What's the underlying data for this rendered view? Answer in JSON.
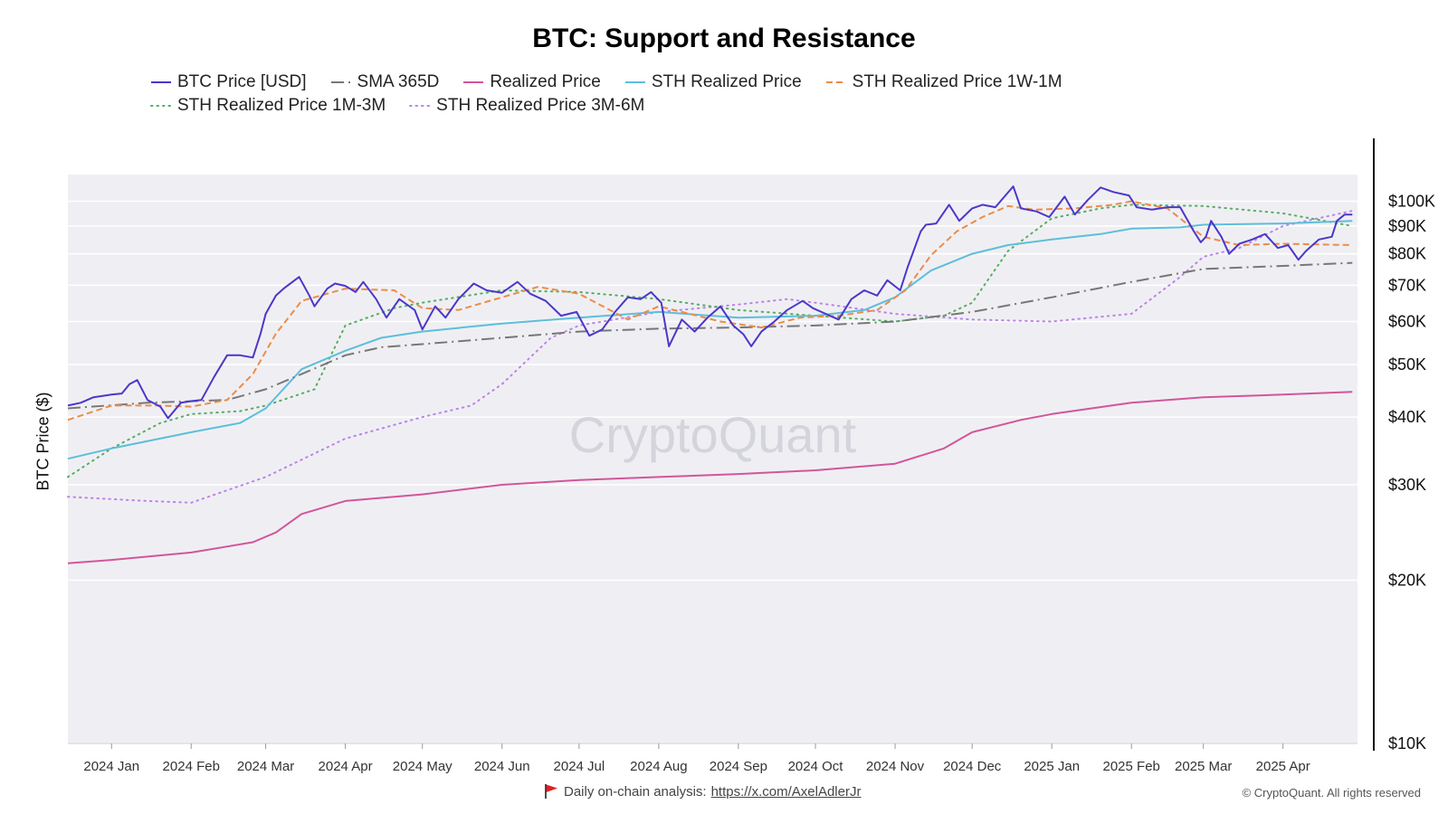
{
  "chart_data": {
    "type": "line",
    "title": "BTC: Support and Resistance",
    "ylabel": "BTC Price ($)",
    "yscale": "log",
    "ylim": [
      10000,
      112000
    ],
    "y_ticks": [
      10000,
      20000,
      30000,
      40000,
      50000,
      60000,
      70000,
      80000,
      90000,
      100000
    ],
    "y_tick_labels": [
      "$10K",
      "$20K",
      "$30K",
      "$40K",
      "$50K",
      "$60K",
      "$70K",
      "$80K",
      "$90K",
      "$100K"
    ],
    "x_range": [
      "2023-12-15",
      "2025-04-30"
    ],
    "x_ticks": [
      "2024-01-01",
      "2024-02-01",
      "2024-03-01",
      "2024-04-01",
      "2024-05-01",
      "2024-06-01",
      "2024-07-01",
      "2024-08-01",
      "2024-09-01",
      "2024-10-01",
      "2024-11-01",
      "2024-12-01",
      "2025-01-01",
      "2025-02-01",
      "2025-03-01",
      "2025-04-01"
    ],
    "x_tick_labels": [
      "2024 Jan",
      "2024 Feb",
      "2024 Mar",
      "2024 Apr",
      "2024 May",
      "2024 Jun",
      "2024 Jul",
      "2024 Aug",
      "2024 Sep",
      "2024 Oct",
      "2024 Nov",
      "2024 Dec",
      "2025 Jan",
      "2025 Feb",
      "2025 Mar",
      "2025 Apr"
    ],
    "grid": true,
    "legend_position": "top",
    "watermark": "CryptoQuant",
    "series": [
      {
        "name": "BTC Price [USD]",
        "color": "#4b37c9",
        "style": "solid",
        "width": 2,
        "x": [
          "2023-12-15",
          "2023-12-20",
          "2023-12-25",
          "2024-01-01",
          "2024-01-05",
          "2024-01-08",
          "2024-01-11",
          "2024-01-15",
          "2024-01-20",
          "2024-01-23",
          "2024-01-28",
          "2024-02-01",
          "2024-02-05",
          "2024-02-10",
          "2024-02-15",
          "2024-02-20",
          "2024-02-25",
          "2024-02-28",
          "2024-03-01",
          "2024-03-05",
          "2024-03-08",
          "2024-03-14",
          "2024-03-18",
          "2024-03-20",
          "2024-03-25",
          "2024-03-28",
          "2024-04-01",
          "2024-04-05",
          "2024-04-08",
          "2024-04-13",
          "2024-04-17",
          "2024-04-22",
          "2024-04-28",
          "2024-05-01",
          "2024-05-06",
          "2024-05-10",
          "2024-05-15",
          "2024-05-21",
          "2024-05-26",
          "2024-06-01",
          "2024-06-07",
          "2024-06-12",
          "2024-06-18",
          "2024-06-24",
          "2024-06-30",
          "2024-07-05",
          "2024-07-10",
          "2024-07-15",
          "2024-07-20",
          "2024-07-25",
          "2024-07-29",
          "2024-08-02",
          "2024-08-05",
          "2024-08-10",
          "2024-08-15",
          "2024-08-20",
          "2024-08-25",
          "2024-08-30",
          "2024-09-03",
          "2024-09-06",
          "2024-09-10",
          "2024-09-15",
          "2024-09-20",
          "2024-09-26",
          "2024-09-30",
          "2024-10-05",
          "2024-10-10",
          "2024-10-15",
          "2024-10-20",
          "2024-10-25",
          "2024-10-29",
          "2024-11-03",
          "2024-11-06",
          "2024-11-11",
          "2024-11-13",
          "2024-11-17",
          "2024-11-22",
          "2024-11-26",
          "2024-12-01",
          "2024-12-05",
          "2024-12-10",
          "2024-12-17",
          "2024-12-20",
          "2024-12-26",
          "2024-12-31",
          "2025-01-06",
          "2025-01-10",
          "2025-01-15",
          "2025-01-20",
          "2025-01-25",
          "2025-01-31",
          "2025-02-03",
          "2025-02-09",
          "2025-02-15",
          "2025-02-20",
          "2025-02-25",
          "2025-02-28",
          "2025-03-02",
          "2025-03-04",
          "2025-03-08",
          "2025-03-11",
          "2025-03-15",
          "2025-03-20",
          "2025-03-25",
          "2025-03-30",
          "2025-04-03",
          "2025-04-07",
          "2025-04-10",
          "2025-04-15",
          "2025-04-20",
          "2025-04-22",
          "2025-04-25",
          "2025-04-28"
        ],
        "values": [
          42000,
          42500,
          43500,
          44000,
          44200,
          46000,
          46800,
          43000,
          41800,
          39800,
          42500,
          42800,
          43000,
          47500,
          52000,
          52000,
          51500,
          57000,
          62000,
          67000,
          69000,
          72500,
          67000,
          64000,
          69000,
          70500,
          69800,
          68000,
          71000,
          66000,
          61000,
          66000,
          63000,
          58000,
          64000,
          61000,
          66000,
          70500,
          68500,
          67800,
          71000,
          67500,
          65500,
          61500,
          62500,
          56500,
          58000,
          62500,
          66500,
          66000,
          68000,
          65000,
          54000,
          60500,
          57500,
          61000,
          64000,
          59000,
          56800,
          54000,
          57500,
          60000,
          63000,
          65500,
          63500,
          62000,
          60500,
          66000,
          68500,
          67000,
          71500,
          68500,
          75800,
          88000,
          90500,
          91000,
          98500,
          92000,
          97000,
          98500,
          97500,
          106500,
          97000,
          95800,
          93500,
          102000,
          94500,
          100500,
          106000,
          104000,
          102500,
          97500,
          96500,
          97500,
          97500,
          88500,
          84000,
          86000,
          92000,
          86000,
          80000,
          83500,
          85000,
          87000,
          82000,
          83000,
          78000,
          81000,
          85000,
          86000,
          92000,
          94500,
          94500
        ]
      },
      {
        "name": "SMA 365D",
        "color": "#777777",
        "style": "dashdot",
        "width": 2,
        "x": [
          "2023-12-15",
          "2024-01-15",
          "2024-02-15",
          "2024-03-01",
          "2024-03-15",
          "2024-04-01",
          "2024-04-15",
          "2024-05-01",
          "2024-06-01",
          "2024-07-01",
          "2024-08-01",
          "2024-09-01",
          "2024-10-01",
          "2024-11-01",
          "2024-12-01",
          "2025-01-01",
          "2025-02-01",
          "2025-03-01",
          "2025-04-01",
          "2025-04-28"
        ],
        "values": [
          41500,
          42500,
          43000,
          45000,
          48000,
          52000,
          53800,
          54500,
          56000,
          57500,
          58200,
          58500,
          59000,
          60000,
          62500,
          66500,
          71000,
          75000,
          76000,
          77000
        ]
      },
      {
        "name": "Realized Price",
        "color": "#d3559a",
        "style": "solid",
        "width": 2,
        "x": [
          "2023-12-15",
          "2024-01-01",
          "2024-02-01",
          "2024-02-25",
          "2024-03-05",
          "2024-03-15",
          "2024-04-01",
          "2024-05-01",
          "2024-06-01",
          "2024-07-01",
          "2024-08-01",
          "2024-09-01",
          "2024-10-01",
          "2024-11-01",
          "2024-11-20",
          "2024-12-01",
          "2024-12-20",
          "2025-01-01",
          "2025-02-01",
          "2025-03-01",
          "2025-04-01",
          "2025-04-28"
        ],
        "values": [
          21500,
          21800,
          22500,
          23500,
          24500,
          26500,
          28000,
          28800,
          30000,
          30600,
          31000,
          31400,
          31900,
          32800,
          35000,
          37500,
          39500,
          40500,
          42500,
          43500,
          44000,
          44500
        ]
      },
      {
        "name": "STH Realized Price",
        "color": "#5dbedb",
        "style": "solid",
        "width": 2,
        "x": [
          "2023-12-15",
          "2024-01-01",
          "2024-02-01",
          "2024-02-20",
          "2024-03-01",
          "2024-03-15",
          "2024-04-01",
          "2024-04-15",
          "2024-05-01",
          "2024-06-01",
          "2024-07-01",
          "2024-08-01",
          "2024-09-01",
          "2024-10-01",
          "2024-10-20",
          "2024-11-01",
          "2024-11-15",
          "2024-12-01",
          "2024-12-15",
          "2025-01-01",
          "2025-01-20",
          "2025-02-01",
          "2025-02-20",
          "2025-03-01",
          "2025-04-01",
          "2025-04-28"
        ],
        "values": [
          33500,
          35000,
          37500,
          39000,
          41500,
          49000,
          53000,
          56000,
          57500,
          59500,
          61000,
          62500,
          61000,
          61500,
          63000,
          66500,
          74500,
          80000,
          83000,
          85000,
          87000,
          89000,
          89500,
          90500,
          91000,
          92000
        ]
      },
      {
        "name": "STH Realized Price 1W-1M",
        "color": "#ec8c48",
        "style": "dashed",
        "width": 2,
        "x": [
          "2023-12-15",
          "2024-01-01",
          "2024-01-20",
          "2024-02-01",
          "2024-02-15",
          "2024-02-25",
          "2024-03-05",
          "2024-03-15",
          "2024-04-01",
          "2024-04-20",
          "2024-05-01",
          "2024-05-15",
          "2024-06-01",
          "2024-06-15",
          "2024-07-01",
          "2024-07-20",
          "2024-08-01",
          "2024-08-10",
          "2024-08-25",
          "2024-09-10",
          "2024-09-25",
          "2024-10-10",
          "2024-10-25",
          "2024-11-05",
          "2024-11-15",
          "2024-11-25",
          "2024-12-05",
          "2024-12-15",
          "2024-12-25",
          "2025-01-10",
          "2025-01-25",
          "2025-02-01",
          "2025-02-15",
          "2025-03-01",
          "2025-03-15",
          "2025-04-01",
          "2025-04-28"
        ],
        "values": [
          39500,
          42000,
          42000,
          41800,
          43000,
          48000,
          57000,
          65500,
          69000,
          68500,
          63500,
          63000,
          66500,
          69500,
          67500,
          60500,
          64000,
          62500,
          60000,
          58500,
          61000,
          61500,
          63000,
          68500,
          79500,
          88000,
          93500,
          98000,
          96500,
          97000,
          98500,
          100000,
          97000,
          86000,
          83000,
          83500,
          83000
        ]
      },
      {
        "name": "STH Realized Price 1M-3M",
        "color": "#55ad62",
        "style": "dotted",
        "width": 2,
        "x": [
          "2023-12-15",
          "2024-01-01",
          "2024-01-20",
          "2024-02-01",
          "2024-02-20",
          "2024-03-01",
          "2024-03-20",
          "2024-04-01",
          "2024-04-20",
          "2024-05-01",
          "2024-06-01",
          "2024-07-01",
          "2024-08-01",
          "2024-09-01",
          "2024-10-01",
          "2024-11-01",
          "2024-11-20",
          "2024-12-01",
          "2024-12-15",
          "2025-01-01",
          "2025-01-20",
          "2025-02-01",
          "2025-03-01",
          "2025-04-01",
          "2025-04-28"
        ],
        "values": [
          31000,
          35000,
          39000,
          40500,
          41000,
          42000,
          45000,
          59000,
          63500,
          65000,
          68500,
          68000,
          66000,
          63000,
          61500,
          60000,
          61500,
          65000,
          81000,
          93000,
          97000,
          98500,
          98000,
          95000,
          90000
        ]
      },
      {
        "name": "STH Realized Price 3M-6M",
        "color": "#bd82e8",
        "style": "dotted",
        "width": 2,
        "x": [
          "2023-12-15",
          "2024-01-15",
          "2024-02-01",
          "2024-03-01",
          "2024-04-01",
          "2024-05-01",
          "2024-05-20",
          "2024-06-01",
          "2024-06-20",
          "2024-07-01",
          "2024-08-01",
          "2024-09-01",
          "2024-09-20",
          "2024-10-01",
          "2024-11-01",
          "2024-12-01",
          "2025-01-01",
          "2025-02-01",
          "2025-02-20",
          "2025-03-01",
          "2025-03-15",
          "2025-04-01",
          "2025-04-28"
        ],
        "values": [
          28500,
          28000,
          27800,
          31000,
          36500,
          40000,
          42000,
          46000,
          56000,
          59000,
          62500,
          64500,
          66000,
          65000,
          62000,
          60500,
          60000,
          62000,
          72500,
          79000,
          82000,
          90000,
          96000
        ]
      }
    ]
  },
  "ylabel": "BTC Price ($)",
  "watermark": "CryptoQuant",
  "footer": {
    "note": "Daily on-chain analysis:",
    "link_text": "https://x.com/AxelAdlerJr",
    "copyright": "© CryptoQuant. All rights reserved"
  },
  "colors": {
    "plot_background": "#efeff3",
    "grid": "#ffffff",
    "flag": "#e02020"
  }
}
